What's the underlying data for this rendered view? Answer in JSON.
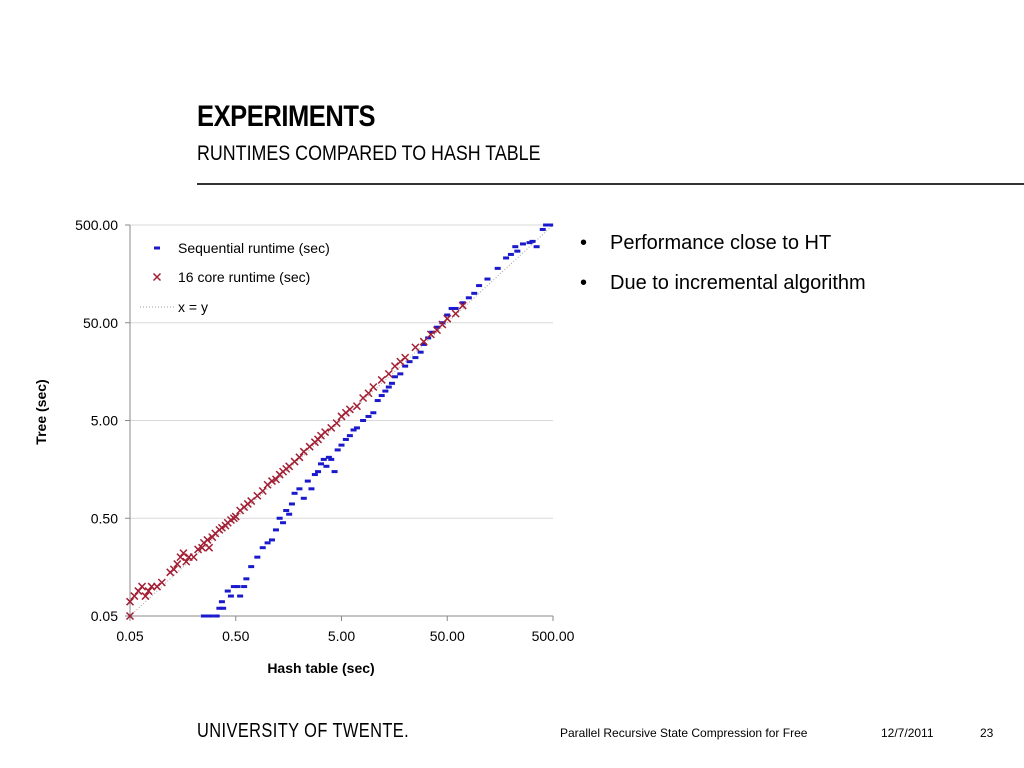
{
  "slide": {
    "title": "EXPERIMENTS",
    "subtitle": "RUNTIMES COMPARED TO HASH TABLE",
    "bullets": [
      "Performance close to HT",
      "Due to incremental algorithm"
    ],
    "footer": {
      "logo": "UNIVERSITY OF TWENTE.",
      "talk_title": "Parallel Recursive State Compression for Free",
      "date": "12/7/2011",
      "page": "23"
    }
  },
  "chart_data": {
    "type": "scatter",
    "title": "",
    "xlabel": "Hash table (sec)",
    "ylabel": "Tree (sec)",
    "xscale": "log",
    "yscale": "log",
    "xlim": [
      0.05,
      500
    ],
    "ylim": [
      0.05,
      500
    ],
    "x_ticks": [
      "0.05",
      "0.50",
      "5.00",
      "50.00",
      "500.00"
    ],
    "y_ticks": [
      "0.05",
      "0.50",
      "5.00",
      "50.00",
      "500.00"
    ],
    "grid": "horizontal",
    "legend_position": "top-left",
    "series": [
      {
        "name": "Sequential runtime (sec)",
        "marker": "dash",
        "color": "#1a1acc",
        "points": [
          [
            0.25,
            0.05
          ],
          [
            0.27,
            0.05
          ],
          [
            0.29,
            0.05
          ],
          [
            0.33,
            0.05
          ],
          [
            0.35,
            0.06
          ],
          [
            0.37,
            0.07
          ],
          [
            0.38,
            0.06
          ],
          [
            0.42,
            0.09
          ],
          [
            0.45,
            0.08
          ],
          [
            0.48,
            0.1
          ],
          [
            0.52,
            0.1
          ],
          [
            0.55,
            0.08
          ],
          [
            0.6,
            0.1
          ],
          [
            0.63,
            0.12
          ],
          [
            0.7,
            0.16
          ],
          [
            0.8,
            0.2
          ],
          [
            0.9,
            0.25
          ],
          [
            1.0,
            0.28
          ],
          [
            1.1,
            0.3
          ],
          [
            1.2,
            0.38
          ],
          [
            1.3,
            0.5
          ],
          [
            1.4,
            0.45
          ],
          [
            1.5,
            0.6
          ],
          [
            1.6,
            0.55
          ],
          [
            1.7,
            0.7
          ],
          [
            1.8,
            0.9
          ],
          [
            2.0,
            1.0
          ],
          [
            2.2,
            0.8
          ],
          [
            2.4,
            1.2
          ],
          [
            2.6,
            1.0
          ],
          [
            2.8,
            1.4
          ],
          [
            3.0,
            1.5
          ],
          [
            3.2,
            1.8
          ],
          [
            3.4,
            2.0
          ],
          [
            3.6,
            1.7
          ],
          [
            3.8,
            2.1
          ],
          [
            4.0,
            2.0
          ],
          [
            4.3,
            1.5
          ],
          [
            4.6,
            2.5
          ],
          [
            5.0,
            2.8
          ],
          [
            5.5,
            3.2
          ],
          [
            6.0,
            3.5
          ],
          [
            6.5,
            4.0
          ],
          [
            7.0,
            4.2
          ],
          [
            8.0,
            5.0
          ],
          [
            9.0,
            5.5
          ],
          [
            10.0,
            6.0
          ],
          [
            11.0,
            8.0
          ],
          [
            12.0,
            9.0
          ],
          [
            13.0,
            10.0
          ],
          [
            14.0,
            11.0
          ],
          [
            15.0,
            12.0
          ],
          [
            16.0,
            14.0
          ],
          [
            18.0,
            15.0
          ],
          [
            20.0,
            18.0
          ],
          [
            22.0,
            20.0
          ],
          [
            25.0,
            22.0
          ],
          [
            28.0,
            25.0
          ],
          [
            30.0,
            30.0
          ],
          [
            33.0,
            35.0
          ],
          [
            36.0,
            40.0
          ],
          [
            40.0,
            45.0
          ],
          [
            45.0,
            50.0
          ],
          [
            50.0,
            60.0
          ],
          [
            55.0,
            70.0
          ],
          [
            60.0,
            70.0
          ],
          [
            70.0,
            80.0
          ],
          [
            80.0,
            90.0
          ],
          [
            90.0,
            100.0
          ],
          [
            100.0,
            120.0
          ],
          [
            120.0,
            140.0
          ],
          [
            150.0,
            180.0
          ],
          [
            180.0,
            230.0
          ],
          [
            200.0,
            250.0
          ],
          [
            220.0,
            300.0
          ],
          [
            230.0,
            270.0
          ],
          [
            260.0,
            320.0
          ],
          [
            300.0,
            330.0
          ],
          [
            320.0,
            340.0
          ],
          [
            350.0,
            300.0
          ],
          [
            400.0,
            450.0
          ],
          [
            430.0,
            500.0
          ],
          [
            470.0,
            500.0
          ]
        ]
      },
      {
        "name": "16 core runtime (sec)",
        "marker": "x",
        "color": "#a31f34",
        "points": [
          [
            0.05,
            0.05
          ],
          [
            0.05,
            0.07
          ],
          [
            0.055,
            0.08
          ],
          [
            0.06,
            0.09
          ],
          [
            0.065,
            0.1
          ],
          [
            0.07,
            0.08
          ],
          [
            0.075,
            0.09
          ],
          [
            0.08,
            0.1
          ],
          [
            0.09,
            0.1
          ],
          [
            0.1,
            0.11
          ],
          [
            0.12,
            0.14
          ],
          [
            0.13,
            0.15
          ],
          [
            0.14,
            0.17
          ],
          [
            0.15,
            0.2
          ],
          [
            0.16,
            0.22
          ],
          [
            0.17,
            0.18
          ],
          [
            0.18,
            0.2
          ],
          [
            0.2,
            0.2
          ],
          [
            0.22,
            0.24
          ],
          [
            0.24,
            0.25
          ],
          [
            0.25,
            0.28
          ],
          [
            0.27,
            0.3
          ],
          [
            0.28,
            0.25
          ],
          [
            0.3,
            0.32
          ],
          [
            0.32,
            0.35
          ],
          [
            0.35,
            0.38
          ],
          [
            0.37,
            0.4
          ],
          [
            0.4,
            0.42
          ],
          [
            0.42,
            0.45
          ],
          [
            0.45,
            0.48
          ],
          [
            0.48,
            0.5
          ],
          [
            0.5,
            0.52
          ],
          [
            0.55,
            0.6
          ],
          [
            0.6,
            0.65
          ],
          [
            0.65,
            0.7
          ],
          [
            0.7,
            0.75
          ],
          [
            0.8,
            0.85
          ],
          [
            0.9,
            0.95
          ],
          [
            1.0,
            1.1
          ],
          [
            1.1,
            1.2
          ],
          [
            1.2,
            1.25
          ],
          [
            1.3,
            1.4
          ],
          [
            1.4,
            1.5
          ],
          [
            1.5,
            1.6
          ],
          [
            1.6,
            1.7
          ],
          [
            1.8,
            1.9
          ],
          [
            2.0,
            2.1
          ],
          [
            2.2,
            2.4
          ],
          [
            2.5,
            2.7
          ],
          [
            2.8,
            3.0
          ],
          [
            3.0,
            3.2
          ],
          [
            3.2,
            3.5
          ],
          [
            3.5,
            3.8
          ],
          [
            4.0,
            4.2
          ],
          [
            4.5,
            4.7
          ],
          [
            5.0,
            5.5
          ],
          [
            5.5,
            6.0
          ],
          [
            6.0,
            6.5
          ],
          [
            7.0,
            7.0
          ],
          [
            8.0,
            8.5
          ],
          [
            9.0,
            9.5
          ],
          [
            10.0,
            11.0
          ],
          [
            12.0,
            13.0
          ],
          [
            14.0,
            15.0
          ],
          [
            16.0,
            18.0
          ],
          [
            18.0,
            20.0
          ],
          [
            20.0,
            22.0
          ],
          [
            25.0,
            28.0
          ],
          [
            30.0,
            32.0
          ],
          [
            35.0,
            38.0
          ],
          [
            40.0,
            42.0
          ],
          [
            45.0,
            48.0
          ],
          [
            50.0,
            55.0
          ],
          [
            60.0,
            62.0
          ],
          [
            70.0,
            75.0
          ]
        ]
      },
      {
        "name": "x = y",
        "marker": "none",
        "line_style": "dotted",
        "color": "#a0a0a0",
        "points": [
          [
            0.05,
            0.05
          ],
          [
            500,
            500
          ]
        ]
      }
    ]
  }
}
